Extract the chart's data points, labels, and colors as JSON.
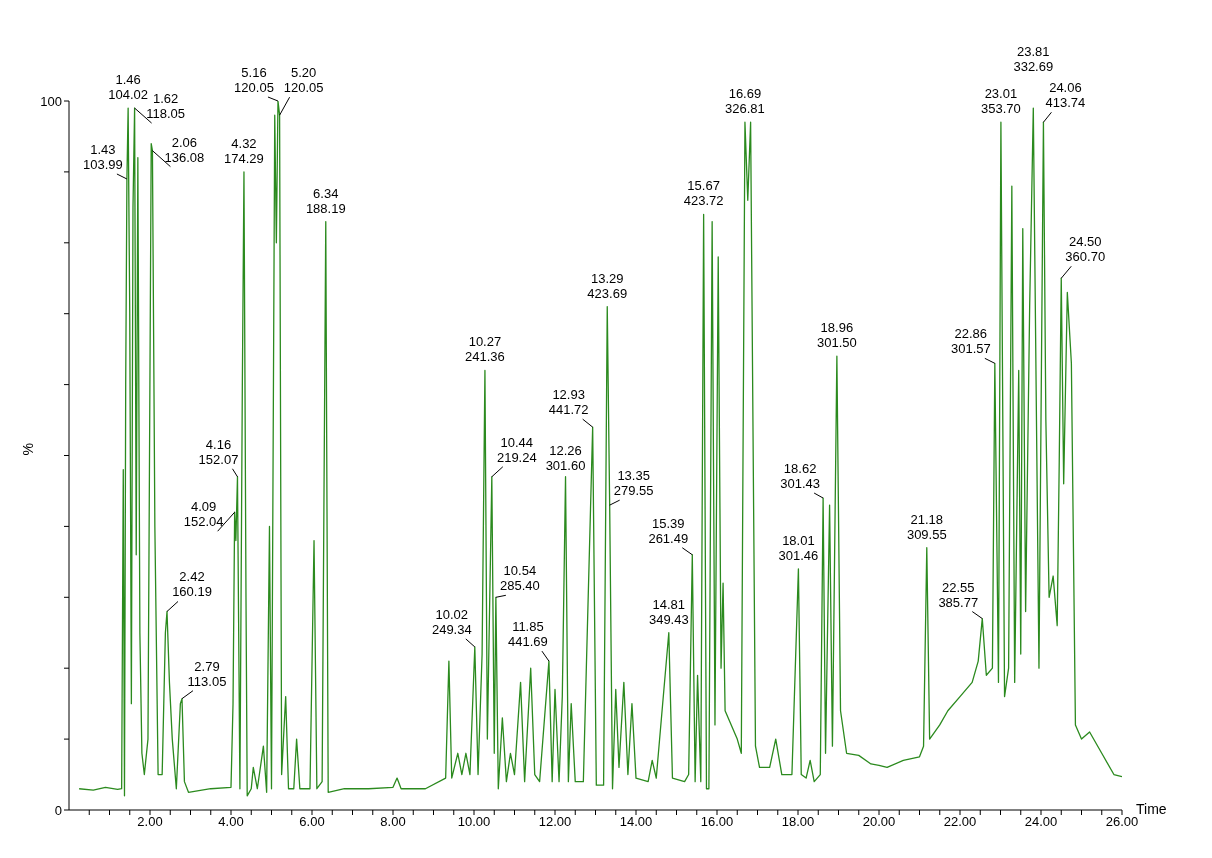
{
  "chart_data": {
    "type": "line",
    "xlabel": "Time",
    "ylabel": "%",
    "color": "#2b8a1e",
    "x": [
      0.25,
      0.6,
      0.9,
      1.2,
      1.3,
      1.34,
      1.37,
      1.4,
      1.43,
      1.46,
      1.5,
      1.54,
      1.58,
      1.62,
      1.66,
      1.7,
      1.75,
      1.8,
      1.86,
      1.95,
      2.03,
      2.06,
      2.12,
      2.2,
      2.3,
      2.38,
      2.42,
      2.48,
      2.55,
      2.65,
      2.75,
      2.79,
      2.85,
      2.95,
      3.5,
      4.0,
      4.05,
      4.09,
      4.12,
      4.16,
      4.22,
      4.28,
      4.32,
      4.37,
      4.4,
      4.5,
      4.55,
      4.65,
      4.8,
      4.88,
      4.95,
      5.0,
      5.08,
      5.12,
      5.16,
      5.2,
      5.25,
      5.35,
      5.42,
      5.55,
      5.62,
      5.7,
      5.95,
      6.05,
      6.12,
      6.25,
      6.34,
      6.4,
      6.8,
      7.4,
      8.0,
      8.1,
      8.2,
      8.8,
      9.3,
      9.38,
      9.45,
      9.6,
      9.7,
      9.8,
      9.9,
      10.02,
      10.1,
      10.2,
      10.27,
      10.33,
      10.44,
      10.5,
      10.54,
      10.6,
      10.7,
      10.8,
      10.9,
      11.0,
      11.15,
      11.25,
      11.4,
      11.5,
      11.62,
      11.85,
      11.93,
      12.0,
      12.1,
      12.18,
      12.26,
      12.33,
      12.4,
      12.5,
      12.7,
      12.93,
      13.02,
      13.2,
      13.29,
      13.35,
      13.42,
      13.5,
      13.58,
      13.7,
      13.8,
      13.9,
      14.0,
      14.3,
      14.4,
      14.5,
      14.81,
      14.9,
      15.2,
      15.3,
      15.39,
      15.46,
      15.52,
      15.6,
      15.67,
      15.74,
      15.8,
      15.88,
      15.95,
      16.03,
      16.1,
      16.15,
      16.2,
      16.5,
      16.6,
      16.69,
      16.76,
      16.83,
      16.95,
      17.05,
      17.3,
      17.45,
      17.6,
      17.85,
      18.01,
      18.08,
      18.2,
      18.3,
      18.4,
      18.55,
      18.62,
      18.68,
      18.78,
      18.85,
      18.96,
      19.05,
      19.2,
      19.5,
      19.8,
      20.0,
      20.2,
      20.6,
      21.0,
      21.1,
      21.18,
      21.25,
      21.5,
      21.7,
      22.0,
      22.3,
      22.45,
      22.55,
      22.65,
      22.8,
      22.86,
      22.95,
      23.01,
      23.1,
      23.2,
      23.28,
      23.35,
      23.45,
      23.5,
      23.55,
      23.62,
      23.72,
      23.81,
      23.95,
      24.06,
      24.12,
      24.2,
      24.3,
      24.4,
      24.45,
      24.5,
      24.56,
      24.65,
      24.75,
      24.85,
      25.0,
      25.2,
      25.5,
      25.8,
      26.0
    ],
    "values": [
      3,
      2.8,
      3.2,
      2.9,
      3,
      48,
      2,
      60,
      89,
      99,
      70,
      15,
      85,
      99,
      36,
      92,
      25,
      8,
      5,
      10,
      94,
      93,
      40,
      5,
      5,
      25,
      28,
      18,
      10,
      3,
      15,
      15.7,
      4,
      2.5,
      3,
      3.2,
      15,
      42,
      38,
      47,
      3,
      60,
      90,
      30,
      2,
      3,
      6,
      3,
      9,
      2.5,
      40,
      3,
      98,
      80,
      100,
      98,
      5,
      16,
      3,
      3,
      10,
      3,
      3,
      38,
      3,
      4,
      83,
      2.5,
      3,
      3,
      3.2,
      4.5,
      3,
      3,
      4.5,
      21,
      4.5,
      8,
      5,
      8,
      5,
      23,
      5,
      22,
      62,
      10,
      47,
      8,
      30,
      3,
      13,
      4,
      8,
      5,
      18,
      4,
      20,
      5,
      4,
      21,
      4,
      17,
      4,
      16,
      47,
      4,
      15,
      4,
      4,
      54,
      3.5,
      3.5,
      71,
      43,
      3,
      17,
      6,
      18,
      5,
      15,
      4.5,
      4,
      7,
      4.5,
      25,
      4.5,
      4,
      5,
      36,
      4,
      19,
      4,
      84,
      3,
      3,
      83,
      12,
      78,
      20,
      32,
      14,
      10,
      8,
      97,
      86,
      97,
      9,
      6,
      6,
      10,
      5,
      5,
      34,
      5,
      4.5,
      7,
      4,
      5,
      44,
      8,
      43,
      9,
      64,
      14,
      8,
      7.7,
      6.5,
      6.3,
      6,
      7,
      7.5,
      9,
      37,
      10,
      12,
      14,
      16,
      18,
      21,
      27,
      19,
      20,
      63,
      18,
      97,
      16,
      20,
      88,
      18,
      62,
      22,
      82,
      28,
      71,
      99,
      20,
      97,
      55,
      30,
      33,
      26,
      49,
      75,
      46,
      73,
      63,
      12,
      10,
      11,
      8,
      5,
      4.7
    ],
    "xlim": [
      0,
      26
    ],
    "ylim": [
      0,
      100
    ],
    "xticks": [
      {
        "value": 0.5,
        "label": null
      },
      {
        "value": 1,
        "label": null
      },
      {
        "value": 1.5,
        "label": null
      },
      {
        "value": 2,
        "label": "2.00"
      },
      {
        "value": 2.5,
        "label": null
      },
      {
        "value": 3,
        "label": null
      },
      {
        "value": 3.5,
        "label": null
      },
      {
        "value": 4,
        "label": "4.00"
      },
      {
        "value": 4.5,
        "label": null
      },
      {
        "value": 5,
        "label": null
      },
      {
        "value": 5.5,
        "label": null
      },
      {
        "value": 6,
        "label": "6.00"
      },
      {
        "value": 6.5,
        "label": null
      },
      {
        "value": 7,
        "label": null
      },
      {
        "value": 7.5,
        "label": null
      },
      {
        "value": 8,
        "label": "8.00"
      },
      {
        "value": 8.5,
        "label": null
      },
      {
        "value": 9,
        "label": null
      },
      {
        "value": 9.5,
        "label": null
      },
      {
        "value": 10,
        "label": "10.00"
      },
      {
        "value": 10.5,
        "label": null
      },
      {
        "value": 11,
        "label": null
      },
      {
        "value": 11.5,
        "label": null
      },
      {
        "value": 12,
        "label": "12.00"
      },
      {
        "value": 12.5,
        "label": null
      },
      {
        "value": 13,
        "label": null
      },
      {
        "value": 13.5,
        "label": null
      },
      {
        "value": 14,
        "label": "14.00"
      },
      {
        "value": 14.5,
        "label": null
      },
      {
        "value": 15,
        "label": null
      },
      {
        "value": 15.5,
        "label": null
      },
      {
        "value": 16,
        "label": "16.00"
      },
      {
        "value": 16.5,
        "label": null
      },
      {
        "value": 17,
        "label": null
      },
      {
        "value": 17.5,
        "label": null
      },
      {
        "value": 18,
        "label": "18.00"
      },
      {
        "value": 18.5,
        "label": null
      },
      {
        "value": 19,
        "label": null
      },
      {
        "value": 19.5,
        "label": null
      },
      {
        "value": 20,
        "label": "20.00"
      },
      {
        "value": 20.5,
        "label": null
      },
      {
        "value": 21,
        "label": null
      },
      {
        "value": 21.5,
        "label": null
      },
      {
        "value": 22,
        "label": "22.00"
      },
      {
        "value": 22.5,
        "label": null
      },
      {
        "value": 23,
        "label": null
      },
      {
        "value": 23.5,
        "label": null
      },
      {
        "value": 24,
        "label": "24.00"
      },
      {
        "value": 24.5,
        "label": null
      },
      {
        "value": 25,
        "label": null
      },
      {
        "value": 25.5,
        "label": null
      },
      {
        "value": 26,
        "label": "26.00"
      }
    ],
    "yticks": [
      0,
      {
        "value": 10,
        "label": null
      },
      {
        "value": 20,
        "label": null
      },
      {
        "value": 30,
        "label": null
      },
      {
        "value": 40,
        "label": null
      },
      {
        "value": 50,
        "label": null
      },
      {
        "value": 60,
        "label": null
      },
      {
        "value": 70,
        "label": null
      },
      {
        "value": 80,
        "label": null
      },
      {
        "value": 90,
        "label": null
      },
      100
    ],
    "annotations": [
      {
        "text": "1.43\n103.99",
        "x": 1.43,
        "y": 89
      },
      {
        "text": "1.46\n104.02",
        "x": 1.46,
        "y": 99
      },
      {
        "text": "1.62\n118.05",
        "x": 1.62,
        "y": 99
      },
      {
        "text": "2.06\n136.08",
        "x": 2.06,
        "y": 93
      },
      {
        "text": "2.42\n160.19",
        "x": 2.42,
        "y": 28
      },
      {
        "text": "2.79\n113.05",
        "x": 2.79,
        "y": 15.7
      },
      {
        "text": "4.09\n152.04",
        "x": 4.09,
        "y": 42
      },
      {
        "text": "4.16\n152.07",
        "x": 4.16,
        "y": 47
      },
      {
        "text": "4.32\n174.29",
        "x": 4.32,
        "y": 90
      },
      {
        "text": "5.16\n120.05",
        "x": 5.16,
        "y": 100
      },
      {
        "text": "5.20\n120.05",
        "x": 5.2,
        "y": 98
      },
      {
        "text": "6.34\n188.19",
        "x": 6.34,
        "y": 83
      },
      {
        "text": "10.02\n249.34",
        "x": 10.02,
        "y": 23
      },
      {
        "text": "10.27\n241.36",
        "x": 10.27,
        "y": 62
      },
      {
        "text": "10.44\n219.24",
        "x": 10.44,
        "y": 47
      },
      {
        "text": "10.54\n285.40",
        "x": 10.54,
        "y": 30
      },
      {
        "text": "11.85\n441.69",
        "x": 11.85,
        "y": 21
      },
      {
        "text": "12.26\n301.60",
        "x": 12.26,
        "y": 47
      },
      {
        "text": "12.93\n441.72",
        "x": 12.93,
        "y": 54
      },
      {
        "text": "13.29\n423.69",
        "x": 13.29,
        "y": 71
      },
      {
        "text": "13.35\n279.55",
        "x": 13.35,
        "y": 43
      },
      {
        "text": "14.81\n349.43",
        "x": 14.81,
        "y": 25
      },
      {
        "text": "15.39\n261.49",
        "x": 15.39,
        "y": 36
      },
      {
        "text": "15.67\n423.72",
        "x": 15.67,
        "y": 84
      },
      {
        "text": "16.69\n326.81",
        "x": 16.69,
        "y": 97
      },
      {
        "text": "18.01\n301.46",
        "x": 18.01,
        "y": 34
      },
      {
        "text": "18.62\n301.43",
        "x": 18.62,
        "y": 44
      },
      {
        "text": "18.96\n301.50",
        "x": 18.96,
        "y": 64
      },
      {
        "text": "21.18\n309.55",
        "x": 21.18,
        "y": 37
      },
      {
        "text": "22.55\n385.77",
        "x": 22.55,
        "y": 27
      },
      {
        "text": "22.86\n301.57",
        "x": 22.86,
        "y": 63
      },
      {
        "text": "23.01\n353.70",
        "x": 23.01,
        "y": 97
      },
      {
        "text": "23.81\n332.69",
        "x": 23.81,
        "y": 99
      },
      {
        "text": "24.06\n413.74",
        "x": 24.06,
        "y": 97
      },
      {
        "text": "24.50\n360.70",
        "x": 24.5,
        "y": 75
      }
    ]
  }
}
